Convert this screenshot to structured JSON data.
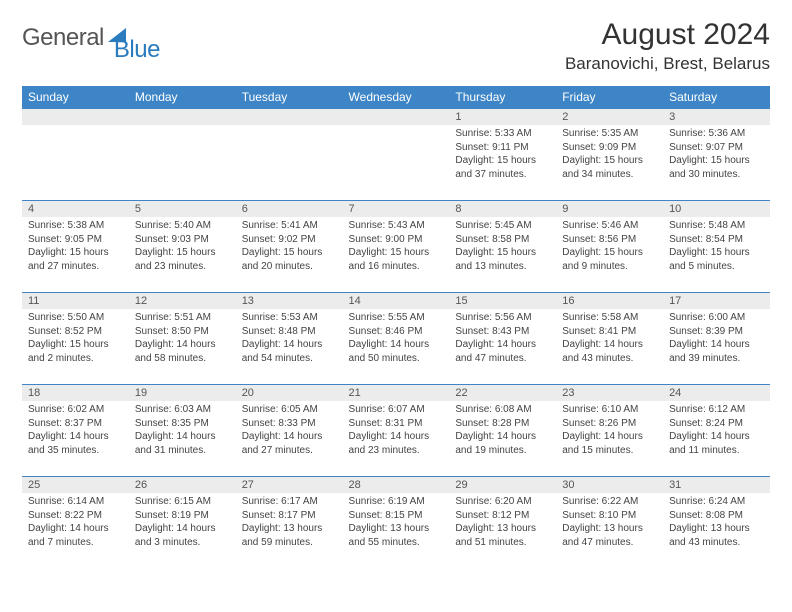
{
  "brand": {
    "word1": "General",
    "word2": "Blue"
  },
  "title": {
    "month": "August 2024",
    "location": "Baranovichi, Brest, Belarus"
  },
  "colors": {
    "header_bg": "#3d85c6",
    "header_text": "#ffffff",
    "daynum_bg": "#ececec",
    "rule": "#3d85c6",
    "brand_accent": "#2b7bbf",
    "brand_gray": "#555555",
    "body_text": "#444444",
    "page_bg": "#ffffff"
  },
  "typography": {
    "month_title_pt": 30,
    "location_pt": 17,
    "dayhead_pt": 12,
    "daynum_pt": 11,
    "body_pt": 10,
    "logo_pt": 24
  },
  "day_names": [
    "Sunday",
    "Monday",
    "Tuesday",
    "Wednesday",
    "Thursday",
    "Friday",
    "Saturday"
  ],
  "grid": {
    "cols": 7,
    "rows": 5,
    "leading_blanks": 4
  },
  "days": [
    {
      "n": "1",
      "sunrise": "Sunrise: 5:33 AM",
      "sunset": "Sunset: 9:11 PM",
      "daylight": "Daylight: 15 hours and 37 minutes."
    },
    {
      "n": "2",
      "sunrise": "Sunrise: 5:35 AM",
      "sunset": "Sunset: 9:09 PM",
      "daylight": "Daylight: 15 hours and 34 minutes."
    },
    {
      "n": "3",
      "sunrise": "Sunrise: 5:36 AM",
      "sunset": "Sunset: 9:07 PM",
      "daylight": "Daylight: 15 hours and 30 minutes."
    },
    {
      "n": "4",
      "sunrise": "Sunrise: 5:38 AM",
      "sunset": "Sunset: 9:05 PM",
      "daylight": "Daylight: 15 hours and 27 minutes."
    },
    {
      "n": "5",
      "sunrise": "Sunrise: 5:40 AM",
      "sunset": "Sunset: 9:03 PM",
      "daylight": "Daylight: 15 hours and 23 minutes."
    },
    {
      "n": "6",
      "sunrise": "Sunrise: 5:41 AM",
      "sunset": "Sunset: 9:02 PM",
      "daylight": "Daylight: 15 hours and 20 minutes."
    },
    {
      "n": "7",
      "sunrise": "Sunrise: 5:43 AM",
      "sunset": "Sunset: 9:00 PM",
      "daylight": "Daylight: 15 hours and 16 minutes."
    },
    {
      "n": "8",
      "sunrise": "Sunrise: 5:45 AM",
      "sunset": "Sunset: 8:58 PM",
      "daylight": "Daylight: 15 hours and 13 minutes."
    },
    {
      "n": "9",
      "sunrise": "Sunrise: 5:46 AM",
      "sunset": "Sunset: 8:56 PM",
      "daylight": "Daylight: 15 hours and 9 minutes."
    },
    {
      "n": "10",
      "sunrise": "Sunrise: 5:48 AM",
      "sunset": "Sunset: 8:54 PM",
      "daylight": "Daylight: 15 hours and 5 minutes."
    },
    {
      "n": "11",
      "sunrise": "Sunrise: 5:50 AM",
      "sunset": "Sunset: 8:52 PM",
      "daylight": "Daylight: 15 hours and 2 minutes."
    },
    {
      "n": "12",
      "sunrise": "Sunrise: 5:51 AM",
      "sunset": "Sunset: 8:50 PM",
      "daylight": "Daylight: 14 hours and 58 minutes."
    },
    {
      "n": "13",
      "sunrise": "Sunrise: 5:53 AM",
      "sunset": "Sunset: 8:48 PM",
      "daylight": "Daylight: 14 hours and 54 minutes."
    },
    {
      "n": "14",
      "sunrise": "Sunrise: 5:55 AM",
      "sunset": "Sunset: 8:46 PM",
      "daylight": "Daylight: 14 hours and 50 minutes."
    },
    {
      "n": "15",
      "sunrise": "Sunrise: 5:56 AM",
      "sunset": "Sunset: 8:43 PM",
      "daylight": "Daylight: 14 hours and 47 minutes."
    },
    {
      "n": "16",
      "sunrise": "Sunrise: 5:58 AM",
      "sunset": "Sunset: 8:41 PM",
      "daylight": "Daylight: 14 hours and 43 minutes."
    },
    {
      "n": "17",
      "sunrise": "Sunrise: 6:00 AM",
      "sunset": "Sunset: 8:39 PM",
      "daylight": "Daylight: 14 hours and 39 minutes."
    },
    {
      "n": "18",
      "sunrise": "Sunrise: 6:02 AM",
      "sunset": "Sunset: 8:37 PM",
      "daylight": "Daylight: 14 hours and 35 minutes."
    },
    {
      "n": "19",
      "sunrise": "Sunrise: 6:03 AM",
      "sunset": "Sunset: 8:35 PM",
      "daylight": "Daylight: 14 hours and 31 minutes."
    },
    {
      "n": "20",
      "sunrise": "Sunrise: 6:05 AM",
      "sunset": "Sunset: 8:33 PM",
      "daylight": "Daylight: 14 hours and 27 minutes."
    },
    {
      "n": "21",
      "sunrise": "Sunrise: 6:07 AM",
      "sunset": "Sunset: 8:31 PM",
      "daylight": "Daylight: 14 hours and 23 minutes."
    },
    {
      "n": "22",
      "sunrise": "Sunrise: 6:08 AM",
      "sunset": "Sunset: 8:28 PM",
      "daylight": "Daylight: 14 hours and 19 minutes."
    },
    {
      "n": "23",
      "sunrise": "Sunrise: 6:10 AM",
      "sunset": "Sunset: 8:26 PM",
      "daylight": "Daylight: 14 hours and 15 minutes."
    },
    {
      "n": "24",
      "sunrise": "Sunrise: 6:12 AM",
      "sunset": "Sunset: 8:24 PM",
      "daylight": "Daylight: 14 hours and 11 minutes."
    },
    {
      "n": "25",
      "sunrise": "Sunrise: 6:14 AM",
      "sunset": "Sunset: 8:22 PM",
      "daylight": "Daylight: 14 hours and 7 minutes."
    },
    {
      "n": "26",
      "sunrise": "Sunrise: 6:15 AM",
      "sunset": "Sunset: 8:19 PM",
      "daylight": "Daylight: 14 hours and 3 minutes."
    },
    {
      "n": "27",
      "sunrise": "Sunrise: 6:17 AM",
      "sunset": "Sunset: 8:17 PM",
      "daylight": "Daylight: 13 hours and 59 minutes."
    },
    {
      "n": "28",
      "sunrise": "Sunrise: 6:19 AM",
      "sunset": "Sunset: 8:15 PM",
      "daylight": "Daylight: 13 hours and 55 minutes."
    },
    {
      "n": "29",
      "sunrise": "Sunrise: 6:20 AM",
      "sunset": "Sunset: 8:12 PM",
      "daylight": "Daylight: 13 hours and 51 minutes."
    },
    {
      "n": "30",
      "sunrise": "Sunrise: 6:22 AM",
      "sunset": "Sunset: 8:10 PM",
      "daylight": "Daylight: 13 hours and 47 minutes."
    },
    {
      "n": "31",
      "sunrise": "Sunrise: 6:24 AM",
      "sunset": "Sunset: 8:08 PM",
      "daylight": "Daylight: 13 hours and 43 minutes."
    }
  ]
}
